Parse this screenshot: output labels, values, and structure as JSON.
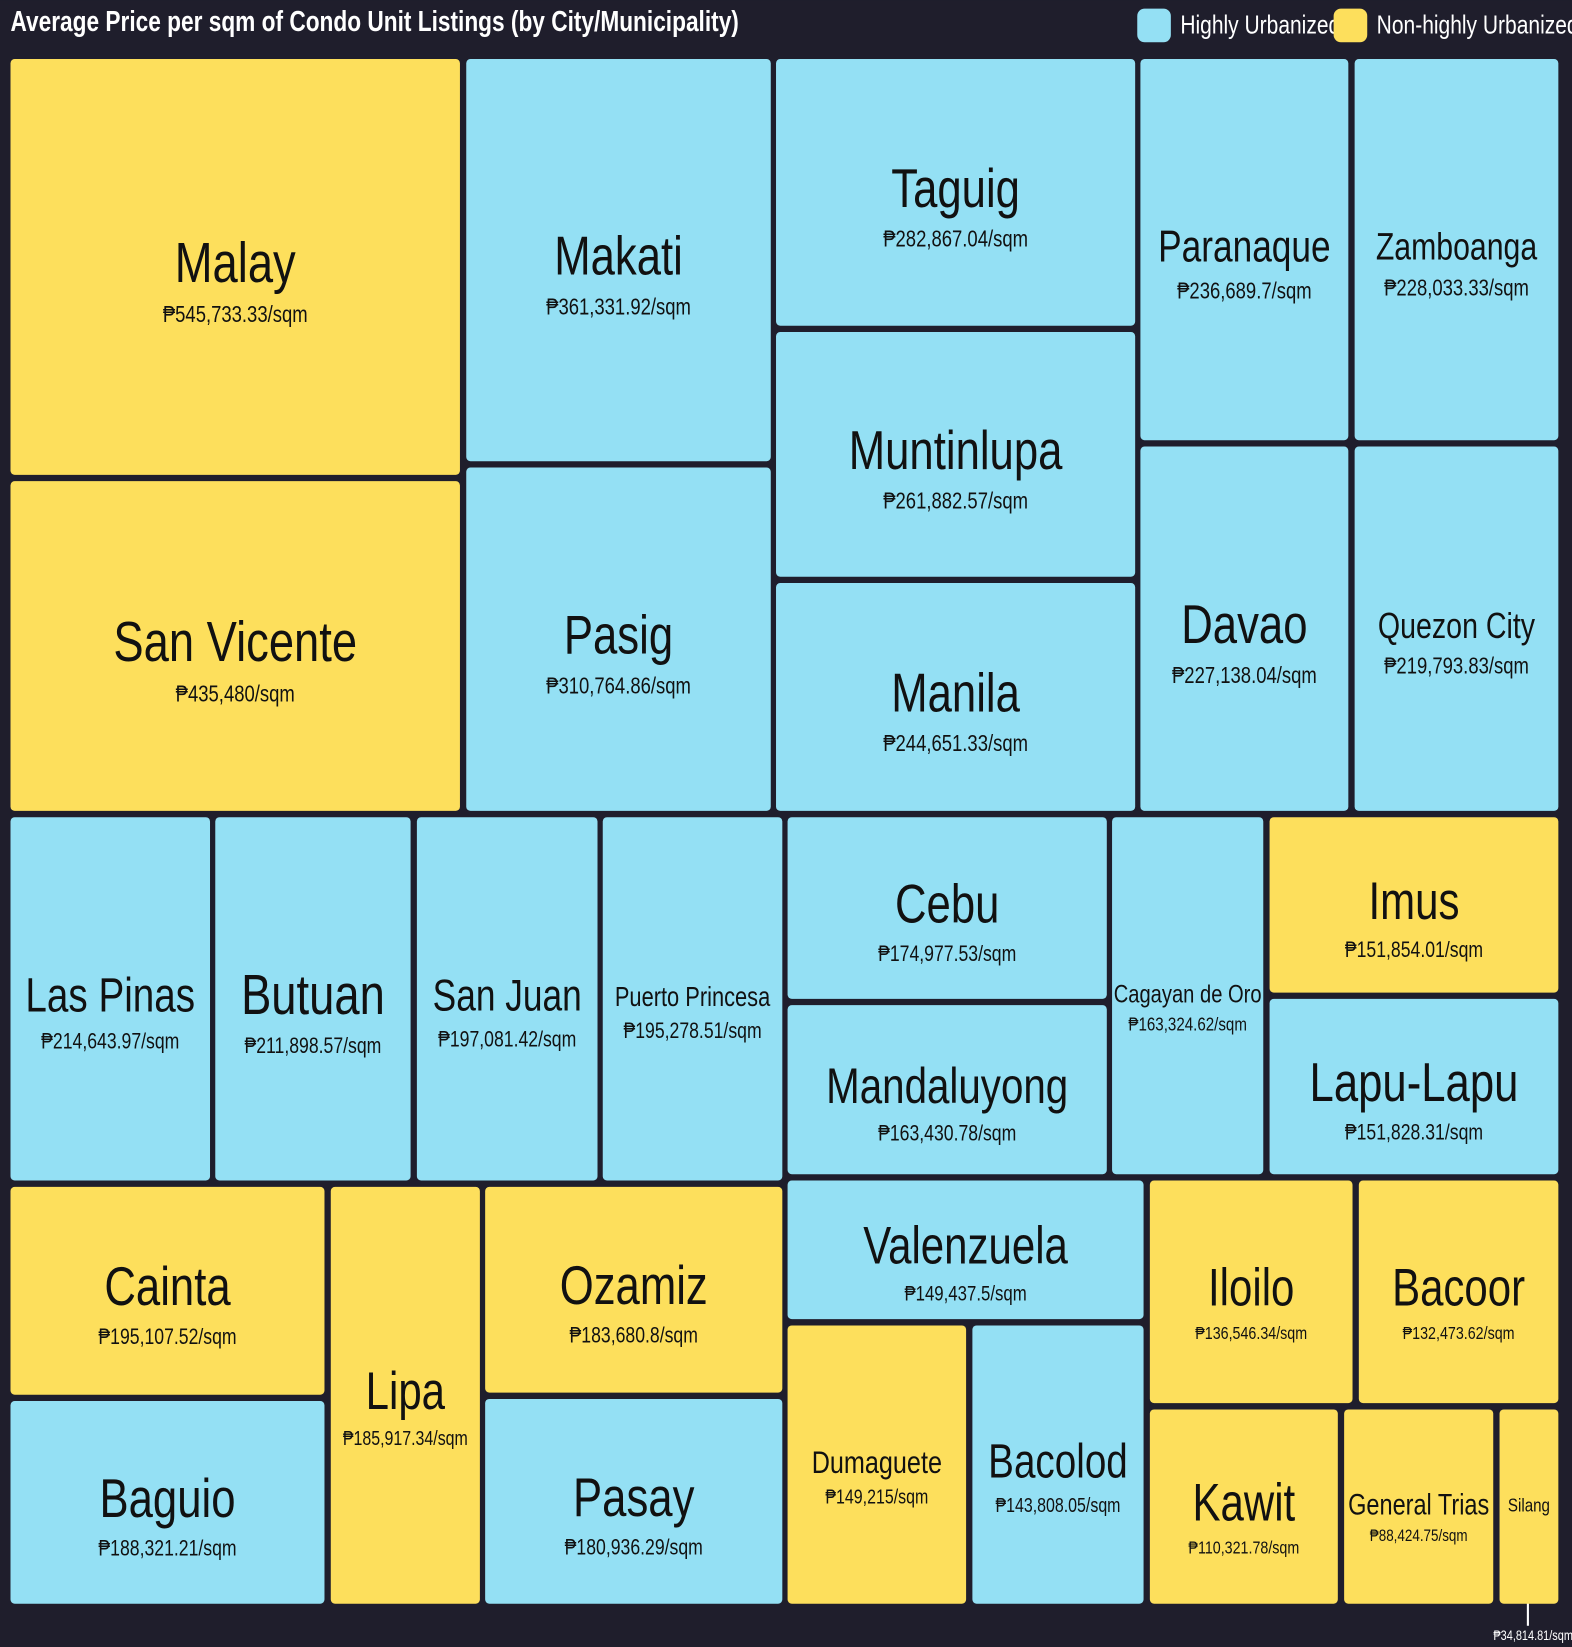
{
  "chart_data": {
    "type": "treemap",
    "title": "Average Price per sqm of Condo Unit Listings (by City/Municipality)",
    "series": [
      {
        "name": "Highly Urbanized",
        "color": "#94e0f4",
        "categories": [
          "Makati",
          "Pasig",
          "Taguig",
          "Muntinlupa",
          "Manila",
          "Paranaque",
          "Zamboanga",
          "Davao",
          "Quezon City",
          "Las Pinas",
          "Butuan",
          "San Juan",
          "Puerto Princesa",
          "Cebu",
          "Mandaluyong",
          "Cagayan de Oro",
          "Lapu-Lapu",
          "Baguio",
          "Pasay",
          "Valenzuela",
          "Bacolod"
        ],
        "values": [
          361331.92,
          310764.86,
          282867.04,
          261882.57,
          244651.33,
          236689.7,
          228033.33,
          227138.04,
          219793.83,
          214643.97,
          211898.57,
          197081.42,
          195278.51,
          174977.53,
          163430.78,
          163324.62,
          151828.31,
          188321.21,
          180936.29,
          149437.5,
          143808.05
        ],
        "value_labels": [
          "₱361,331.92/sqm",
          "₱310,764.86/sqm",
          "₱282,867.04/sqm",
          "₱261,882.57/sqm",
          "₱244,651.33/sqm",
          "₱236,689.7/sqm",
          "₱228,033.33/sqm",
          "₱227,138.04/sqm",
          "₱219,793.83/sqm",
          "₱214,643.97/sqm",
          "₱211,898.57/sqm",
          "₱197,081.42/sqm",
          "₱195,278.51/sqm",
          "₱174,977.53/sqm",
          "₱163,430.78/sqm",
          "₱163,324.62/sqm",
          "₱151,828.31/sqm",
          "₱188,321.21/sqm",
          "₱180,936.29/sqm",
          "₱149,437.5/sqm",
          "₱143,808.05/sqm"
        ]
      },
      {
        "name": "Non-highly Urbanized",
        "color": "#fddf5c",
        "categories": [
          "Malay",
          "San Vicente",
          "Imus",
          "Cainta",
          "Lipa",
          "Ozamiz",
          "Dumaguete",
          "Iloilo",
          "Bacoor",
          "Kawit",
          "General Trias",
          "Silang"
        ],
        "values": [
          545733.33,
          435480,
          151854.01,
          195107.52,
          185917.34,
          183680.8,
          149215,
          136546.34,
          132473.62,
          110321.78,
          88424.75,
          34814.81
        ],
        "value_labels": [
          "₱545,733.33/sqm",
          "₱435,480/sqm",
          "₱151,854.01/sqm",
          "₱195,107.52/sqm",
          "₱185,917.34/sqm",
          "₱183,680.8/sqm",
          "₱149,215/sqm",
          "₱136,546.34/sqm",
          "₱132,473.62/sqm",
          "₱110,321.78/sqm",
          "₱88,424.75/sqm",
          "₱34,814.81/sqm"
        ]
      }
    ]
  }
}
